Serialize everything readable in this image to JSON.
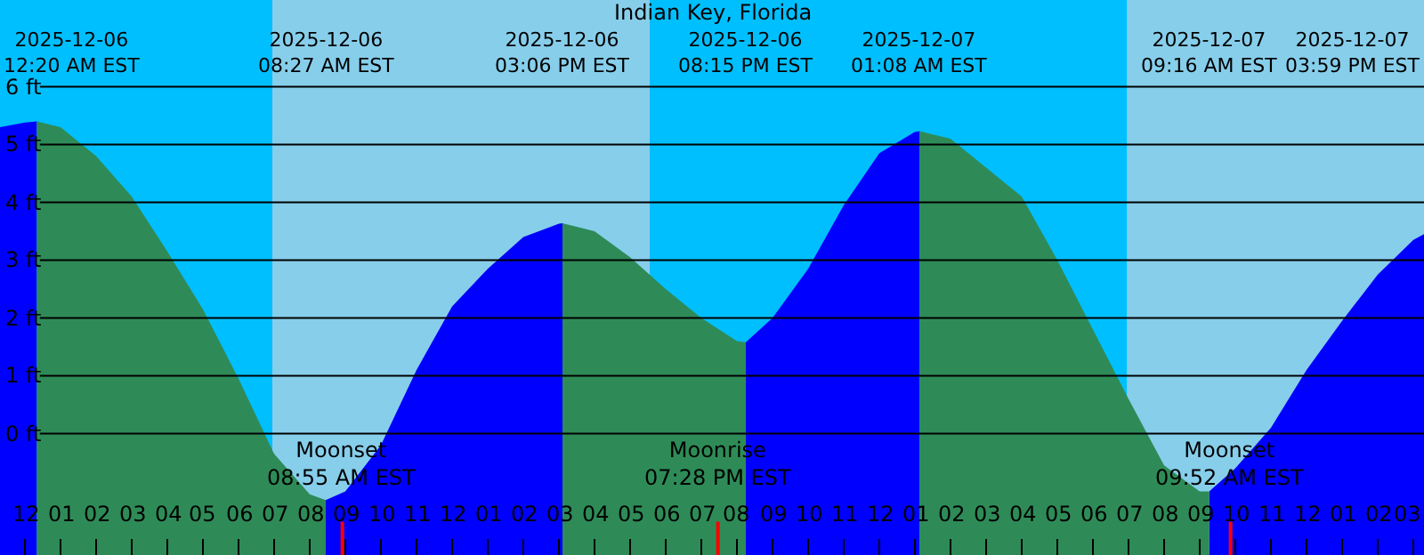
{
  "chart_data": {
    "type": "area",
    "title": "Indian Key, Florida",
    "x": [
      "2025-12-05T23:18",
      "2025-12-06T00:00",
      "2025-12-06T00:20",
      "2025-12-06T01:00",
      "2025-12-06T02:00",
      "2025-12-06T03:00",
      "2025-12-06T04:00",
      "2025-12-06T05:00",
      "2025-12-06T06:00",
      "2025-12-06T07:00",
      "2025-12-06T08:00",
      "2025-12-06T08:27",
      "2025-12-06T09:00",
      "2025-12-06T10:00",
      "2025-12-06T11:00",
      "2025-12-06T12:00",
      "2025-12-06T13:00",
      "2025-12-06T14:00",
      "2025-12-06T15:00",
      "2025-12-06T15:06",
      "2025-12-06T16:00",
      "2025-12-06T17:00",
      "2025-12-06T18:00",
      "2025-12-06T19:00",
      "2025-12-06T20:00",
      "2025-12-06T20:15",
      "2025-12-06T21:00",
      "2025-12-06T22:00",
      "2025-12-06T23:00",
      "2025-12-07T00:00",
      "2025-12-07T01:00",
      "2025-12-07T01:08",
      "2025-12-07T02:00",
      "2025-12-07T03:00",
      "2025-12-07T04:00",
      "2025-12-07T05:00",
      "2025-12-07T06:00",
      "2025-12-07T07:00",
      "2025-12-07T08:00",
      "2025-12-07T09:00",
      "2025-12-07T09:16",
      "2025-12-07T10:00",
      "2025-12-07T11:00",
      "2025-12-07T12:00",
      "2025-12-07T13:00",
      "2025-12-07T14:00",
      "2025-12-07T15:00",
      "2025-12-07T15:18"
    ],
    "series": [
      {
        "color": "#0000ff",
        "values": [
          5.3,
          5.38,
          5.4,
          null,
          null,
          null,
          null,
          null,
          null,
          null,
          null,
          -1.15,
          -1.0,
          -0.2,
          1.1,
          2.2,
          2.85,
          3.4,
          3.63,
          3.64,
          null,
          null,
          null,
          null,
          null,
          1.58,
          2.0,
          2.85,
          3.95,
          4.85,
          5.22,
          5.23,
          null,
          null,
          null,
          null,
          null,
          null,
          null,
          null,
          -1.0,
          -0.6,
          0.1,
          1.1,
          1.95,
          2.75,
          3.35,
          3.45
        ]
      },
      {
        "color": "#2e8b57",
        "values": [
          null,
          null,
          5.4,
          5.3,
          4.8,
          4.1,
          3.15,
          2.15,
          0.95,
          -0.35,
          -1.05,
          -1.15,
          null,
          null,
          null,
          null,
          null,
          null,
          null,
          3.64,
          3.5,
          3.05,
          2.5,
          2.0,
          1.6,
          1.58,
          null,
          null,
          null,
          null,
          null,
          5.23,
          5.1,
          4.6,
          4.1,
          3.0,
          1.8,
          0.6,
          -0.55,
          -1.0,
          -1.0,
          null,
          null,
          null,
          null,
          null,
          null,
          null
        ]
      }
    ],
    "xlim": [
      "2025-12-05T23:18",
      "2025-12-07T15:18"
    ],
    "xticks": [
      {
        "value": "2025-12-06T00:00",
        "label": "12"
      },
      {
        "value": "2025-12-06T01:00",
        "label": "01"
      },
      {
        "value": "2025-12-06T02:00",
        "label": "02"
      },
      {
        "value": "2025-12-06T03:00",
        "label": "03"
      },
      {
        "value": "2025-12-06T04:00",
        "label": "04"
      },
      {
        "value": "2025-12-06T05:00",
        "label": "05"
      },
      {
        "value": "2025-12-06T06:00",
        "label": "06"
      },
      {
        "value": "2025-12-06T07:00",
        "label": "07"
      },
      {
        "value": "2025-12-06T08:00",
        "label": "08"
      },
      {
        "value": "2025-12-06T09:00",
        "label": "09"
      },
      {
        "value": "2025-12-06T10:00",
        "label": "10"
      },
      {
        "value": "2025-12-06T11:00",
        "label": "11"
      },
      {
        "value": "2025-12-06T12:00",
        "label": "12"
      },
      {
        "value": "2025-12-06T13:00",
        "label": "01"
      },
      {
        "value": "2025-12-06T14:00",
        "label": "02"
      },
      {
        "value": "2025-12-06T15:00",
        "label": "03"
      },
      {
        "value": "2025-12-06T16:00",
        "label": "04"
      },
      {
        "value": "2025-12-06T17:00",
        "label": "05"
      },
      {
        "value": "2025-12-06T18:00",
        "label": "06"
      },
      {
        "value": "2025-12-06T19:00",
        "label": "07"
      },
      {
        "value": "2025-12-06T20:00",
        "label": "08"
      },
      {
        "value": "2025-12-06T21:00",
        "label": "09"
      },
      {
        "value": "2025-12-06T22:00",
        "label": "10"
      },
      {
        "value": "2025-12-06T23:00",
        "label": "11"
      },
      {
        "value": "2025-12-07T00:00",
        "label": "12"
      },
      {
        "value": "2025-12-07T01:00",
        "label": "01"
      },
      {
        "value": "2025-12-07T02:00",
        "label": "02"
      },
      {
        "value": "2025-12-07T03:00",
        "label": "03"
      },
      {
        "value": "2025-12-07T04:00",
        "label": "04"
      },
      {
        "value": "2025-12-07T05:00",
        "label": "05"
      },
      {
        "value": "2025-12-07T06:00",
        "label": "06"
      },
      {
        "value": "2025-12-07T07:00",
        "label": "07"
      },
      {
        "value": "2025-12-07T08:00",
        "label": "08"
      },
      {
        "value": "2025-12-07T09:00",
        "label": "09"
      },
      {
        "value": "2025-12-07T10:00",
        "label": "10"
      },
      {
        "value": "2025-12-07T11:00",
        "label": "11"
      },
      {
        "value": "2025-12-07T12:00",
        "label": "12"
      },
      {
        "value": "2025-12-07T13:00",
        "label": "01"
      },
      {
        "value": "2025-12-07T14:00",
        "label": "02"
      },
      {
        "value": "2025-12-07T15:00",
        "label": "03"
      }
    ],
    "ylim": [
      -2.1,
      7.5
    ],
    "yticks": [
      {
        "value": 0,
        "label": "0 ft"
      },
      {
        "value": 1,
        "label": "1 ft"
      },
      {
        "value": 2,
        "label": "2 ft"
      },
      {
        "value": 3,
        "label": "3 ft"
      },
      {
        "value": 4,
        "label": "4 ft"
      },
      {
        "value": 5,
        "label": "5 ft"
      },
      {
        "value": 6,
        "label": "6 ft"
      }
    ],
    "grid": "y",
    "bands": [
      {
        "axis": "x",
        "from": "2025-12-05T23:18",
        "to": "2025-12-06T06:57",
        "color": "#00bfff"
      },
      {
        "axis": "x",
        "from": "2025-12-06T06:57",
        "to": "2025-12-06T17:33",
        "color": "#87ceeb"
      },
      {
        "axis": "x",
        "from": "2025-12-06T17:33",
        "to": "2025-12-07T06:58",
        "color": "#00bfff"
      },
      {
        "axis": "x",
        "from": "2025-12-07T06:58",
        "to": "2025-12-07T15:18",
        "color": "#87ceeb"
      }
    ],
    "ref_lines": [
      {
        "axis": "x",
        "value": "2025-12-06T08:55",
        "label": "Moonset\n08:55 AM EST",
        "color": "#ff0000"
      },
      {
        "axis": "x",
        "value": "2025-12-06T19:28",
        "label": "Moonrise\n07:28 PM EST",
        "color": "#ff0000"
      },
      {
        "axis": "x",
        "value": "2025-12-07T09:52",
        "label": "Moonset\n09:52 AM EST",
        "color": "#ff0000"
      }
    ],
    "annotations": [
      "2025-12-06\n12:20 AM EST",
      "2025-12-06\n08:27 AM EST",
      "2025-12-06\n03:06 PM EST",
      "2025-12-06\n08:15 PM EST",
      "2025-12-07\n01:08 AM EST",
      "2025-12-07\n09:16 AM EST",
      "2025-12-07\n03:59 PM EST"
    ]
  }
}
